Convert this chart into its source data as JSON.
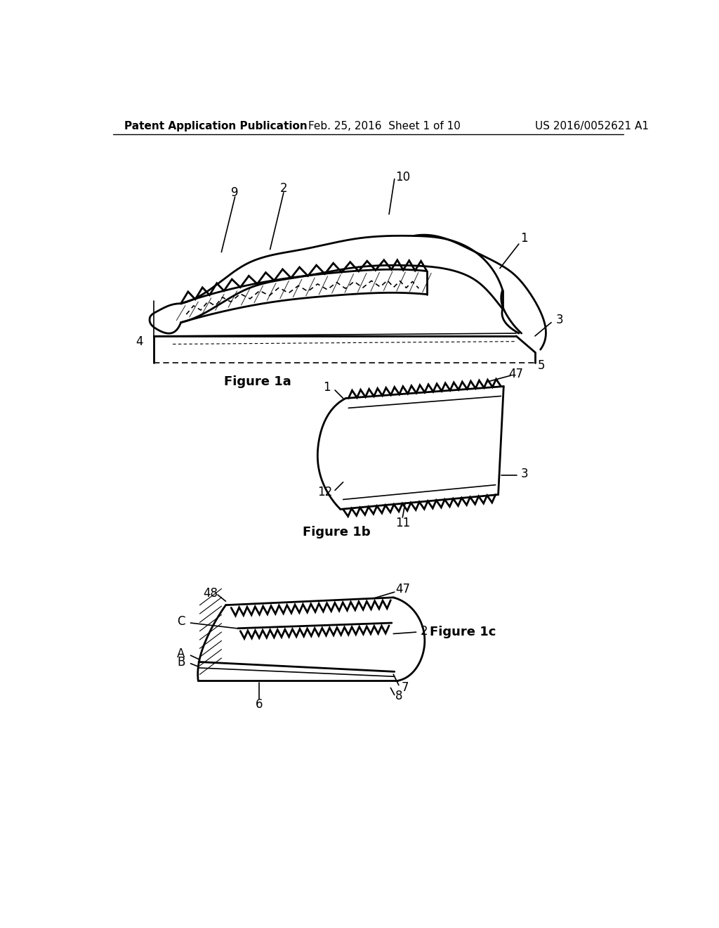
{
  "bg_color": "#ffffff",
  "line_color": "#000000",
  "header_left": "Patent Application Publication",
  "header_mid": "Feb. 25, 2016  Sheet 1 of 10",
  "header_right": "US 2016/0052621 A1",
  "fig1a_caption": "Figure 1a",
  "fig1b_caption": "Figure 1b",
  "fig1c_caption": "Figure 1c",
  "font_size_header": 11,
  "font_size_caption": 13,
  "font_size_label": 12
}
